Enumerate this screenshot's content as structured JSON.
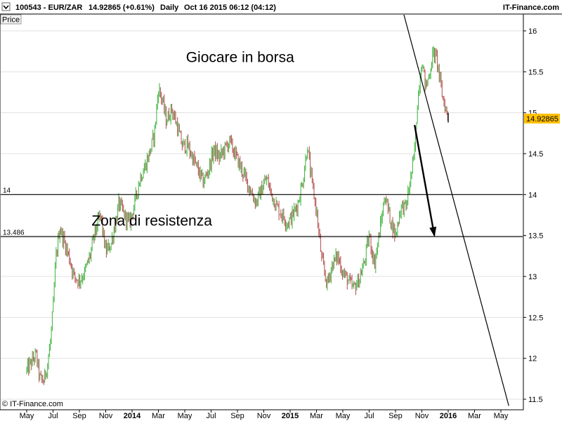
{
  "header": {
    "symbol": "100543 - EUR/ZAR",
    "last_price": "14.92865 (+0.61%)",
    "timeframe": "Daily",
    "datetime": "Oct 16 2015 06:12 (04:12)",
    "brand": "IT-Finance.com",
    "price_tab": "Price"
  },
  "footer": {
    "copyright": "© IT-Finance.com"
  },
  "colors": {
    "up": "#4cb84c",
    "down": "#b85a5a",
    "price_tag_bg": "#ffc000",
    "grid": "#e0e0e0"
  },
  "chart_data": {
    "type": "candlestick",
    "title": "",
    "xlabel": "",
    "ylabel": "Price",
    "ylim": [
      11.42,
      16.2
    ],
    "y_ticks": [
      "16",
      "15.5",
      "15",
      "14.5",
      "14",
      "13.5",
      "13",
      "12.5",
      "12",
      "11.5"
    ],
    "x_ticks": [
      "May",
      "Jul",
      "Sep",
      "Nov",
      "2014",
      "Mar",
      "May",
      "Jul",
      "Sep",
      "Nov",
      "2015",
      "Mar",
      "May",
      "Jul",
      "Sep",
      "Nov",
      "2016",
      "Mar",
      "May"
    ],
    "x_tick_values": [
      0,
      2,
      4,
      6,
      8,
      10,
      12,
      14,
      16,
      18,
      20,
      22,
      24,
      26,
      28,
      30,
      32,
      34,
      36
    ],
    "x_unit_note": "",
    "last_price_label": "14.92865",
    "horizontal_levels": [
      {
        "value": 14.0,
        "label": "14"
      },
      {
        "value": 13.486,
        "label": "13.486"
      }
    ],
    "annotations": [
      {
        "text": "Giocare in borsa",
        "x": 16.2,
        "y": 15.62
      },
      {
        "text": "Zona di resistenza",
        "x": 9.5,
        "y": 13.62
      }
    ],
    "trendline": {
      "x": [
        28.6,
        36.6
      ],
      "y": [
        16.22,
        11.42
      ]
    },
    "arrow": {
      "x": [
        29.45,
        30.95
      ],
      "y": [
        14.85,
        13.5
      ]
    },
    "price_path": [
      {
        "x": 0.0,
        "y": 11.85
      },
      {
        "x": 0.35,
        "y": 11.95
      },
      {
        "x": 0.7,
        "y": 12.05
      },
      {
        "x": 1.0,
        "y": 11.75
      },
      {
        "x": 1.3,
        "y": 11.72
      },
      {
        "x": 1.6,
        "y": 11.95
      },
      {
        "x": 1.8,
        "y": 12.2
      },
      {
        "x": 2.0,
        "y": 12.6
      },
      {
        "x": 2.2,
        "y": 13.2
      },
      {
        "x": 2.5,
        "y": 13.6
      },
      {
        "x": 2.9,
        "y": 13.4
      },
      {
        "x": 3.2,
        "y": 13.25
      },
      {
        "x": 3.6,
        "y": 13.0
      },
      {
        "x": 4.0,
        "y": 12.95
      },
      {
        "x": 4.4,
        "y": 13.05
      },
      {
        "x": 4.8,
        "y": 13.25
      },
      {
        "x": 5.2,
        "y": 13.55
      },
      {
        "x": 5.6,
        "y": 13.75
      },
      {
        "x": 6.0,
        "y": 13.3
      },
      {
        "x": 6.4,
        "y": 13.4
      },
      {
        "x": 6.8,
        "y": 13.7
      },
      {
        "x": 7.0,
        "y": 13.9
      },
      {
        "x": 7.4,
        "y": 13.75
      },
      {
        "x": 7.8,
        "y": 13.65
      },
      {
        "x": 8.2,
        "y": 13.9
      },
      {
        "x": 8.6,
        "y": 14.2
      },
      {
        "x": 9.0,
        "y": 14.35
      },
      {
        "x": 9.4,
        "y": 14.55
      },
      {
        "x": 9.7,
        "y": 14.75
      },
      {
        "x": 10.0,
        "y": 15.3
      },
      {
        "x": 10.3,
        "y": 15.15
      },
      {
        "x": 10.6,
        "y": 14.9
      },
      {
        "x": 11.0,
        "y": 15.05
      },
      {
        "x": 11.4,
        "y": 14.85
      },
      {
        "x": 11.8,
        "y": 14.6
      },
      {
        "x": 12.2,
        "y": 14.6
      },
      {
        "x": 12.6,
        "y": 14.45
      },
      {
        "x": 13.0,
        "y": 14.3
      },
      {
        "x": 13.4,
        "y": 14.15
      },
      {
        "x": 13.8,
        "y": 14.3
      },
      {
        "x": 14.2,
        "y": 14.55
      },
      {
        "x": 14.6,
        "y": 14.45
      },
      {
        "x": 15.0,
        "y": 14.55
      },
      {
        "x": 15.4,
        "y": 14.65
      },
      {
        "x": 15.8,
        "y": 14.5
      },
      {
        "x": 16.2,
        "y": 14.35
      },
      {
        "x": 16.6,
        "y": 14.2
      },
      {
        "x": 17.0,
        "y": 14.05
      },
      {
        "x": 17.4,
        "y": 13.9
      },
      {
        "x": 17.8,
        "y": 14.05
      },
      {
        "x": 18.2,
        "y": 14.2
      },
      {
        "x": 18.6,
        "y": 14.0
      },
      {
        "x": 19.0,
        "y": 13.85
      },
      {
        "x": 19.4,
        "y": 13.75
      },
      {
        "x": 19.8,
        "y": 13.65
      },
      {
        "x": 20.2,
        "y": 13.75
      },
      {
        "x": 20.6,
        "y": 13.9
      },
      {
        "x": 21.0,
        "y": 14.2
      },
      {
        "x": 21.3,
        "y": 14.6
      },
      {
        "x": 21.6,
        "y": 14.2
      },
      {
        "x": 22.0,
        "y": 13.8
      },
      {
        "x": 22.4,
        "y": 13.2
      },
      {
        "x": 22.8,
        "y": 12.9
      },
      {
        "x": 23.2,
        "y": 13.15
      },
      {
        "x": 23.6,
        "y": 13.25
      },
      {
        "x": 24.0,
        "y": 13.05
      },
      {
        "x": 24.4,
        "y": 12.95
      },
      {
        "x": 24.8,
        "y": 12.85
      },
      {
        "x": 25.2,
        "y": 12.95
      },
      {
        "x": 25.6,
        "y": 13.15
      },
      {
        "x": 26.0,
        "y": 13.5
      },
      {
        "x": 26.4,
        "y": 13.15
      },
      {
        "x": 26.8,
        "y": 13.55
      },
      {
        "x": 27.2,
        "y": 14.0
      },
      {
        "x": 27.6,
        "y": 13.7
      },
      {
        "x": 28.0,
        "y": 13.5
      },
      {
        "x": 28.4,
        "y": 13.85
      },
      {
        "x": 28.8,
        "y": 13.85
      },
      {
        "x": 29.1,
        "y": 14.15
      },
      {
        "x": 29.4,
        "y": 14.45
      },
      {
        "x": 29.7,
        "y": 15.2
      },
      {
        "x": 30.0,
        "y": 15.65
      },
      {
        "x": 30.3,
        "y": 15.3
      },
      {
        "x": 30.6,
        "y": 15.5
      },
      {
        "x": 30.9,
        "y": 15.75
      },
      {
        "x": 31.2,
        "y": 15.6
      },
      {
        "x": 31.5,
        "y": 15.25
      },
      {
        "x": 31.8,
        "y": 15.05
      },
      {
        "x": 32.0,
        "y": 14.93
      }
    ]
  }
}
